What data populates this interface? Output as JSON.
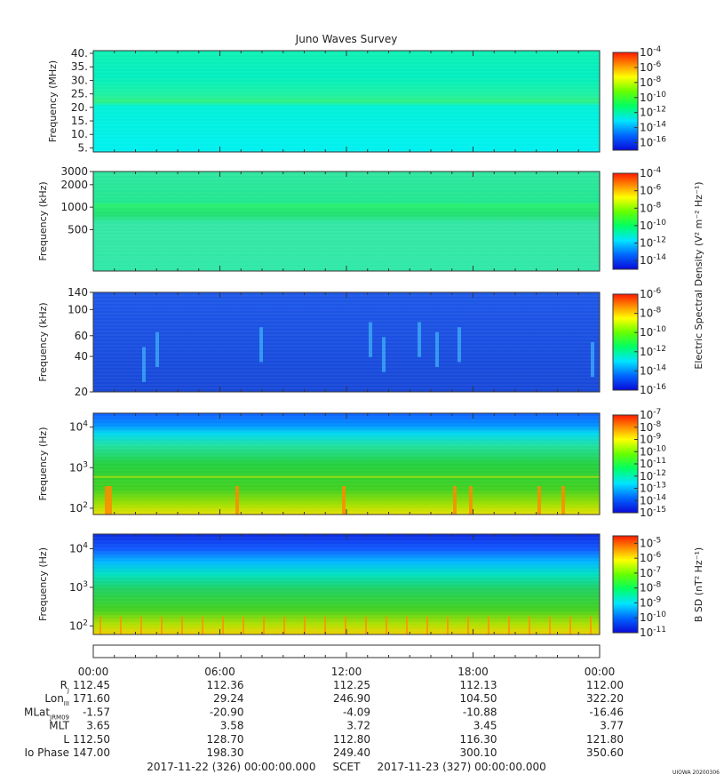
{
  "title": "Juno Waves Survey",
  "stamp": "UIOWA 20200306",
  "footer": {
    "start": "2017-11-22 (326) 00:00:00.000",
    "label": "SCET",
    "end": "2017-11-23 (327) 00:00:00.000"
  },
  "time_ticks": [
    "00:00",
    "06:00",
    "12:00",
    "18:00",
    "00:00"
  ],
  "ephemeris": [
    {
      "label": "R",
      "sub": "J",
      "values": [
        "112.45",
        "112.36",
        "112.25",
        "112.13",
        "112.00"
      ]
    },
    {
      "label": "Lon",
      "sub": "III",
      "values": [
        "171.60",
        "29.24",
        "246.90",
        "104.50",
        "322.20"
      ]
    },
    {
      "label": "MLat",
      "sub": "JRM09",
      "values": [
        "-1.57",
        "-20.90",
        "-4.09",
        "-10.88",
        "-16.46"
      ]
    },
    {
      "label": "MLT",
      "sub": "",
      "values": [
        "3.65",
        "3.58",
        "3.72",
        "3.45",
        "3.77"
      ]
    },
    {
      "label": "L",
      "sub": "",
      "values": [
        "112.50",
        "128.70",
        "112.80",
        "116.30",
        "121.80"
      ]
    },
    {
      "label": "Io Phase",
      "sub": "",
      "values": [
        "147.00",
        "198.30",
        "249.40",
        "300.10",
        "350.60"
      ]
    }
  ],
  "colorbar_titles": {
    "electric": "Electric Spectral Density (V² m⁻² Hz⁻¹)",
    "magnetic": "B SD (nT² Hz⁻¹)"
  },
  "chart_data": [
    {
      "type": "heatmap",
      "ylabel": "Frequency (MHz)",
      "yscale": "linear",
      "ylim": [
        3.5,
        41
      ],
      "yticks": [
        "5.",
        "10.",
        "15.",
        "20.",
        "25.",
        "30.",
        "35.",
        "40."
      ],
      "ytick_values": [
        5,
        10,
        15,
        20,
        25,
        30,
        35,
        40
      ],
      "colorbar": {
        "scale": "log",
        "range_exp": [
          -17,
          -4
        ],
        "tick_exponents": [
          -4,
          -6,
          -8,
          -10,
          -12,
          -14,
          -16
        ]
      },
      "features": "uniform background with emission band near 21 MHz",
      "base_color": "#00e9c8"
    },
    {
      "type": "heatmap",
      "ylabel": "Frequency (kHz)",
      "yscale": "log",
      "ylim": [
        140,
        3000
      ],
      "yticks": [
        "3000",
        "2000",
        "1000",
        "500"
      ],
      "ytick_values": [
        3000,
        2000,
        1000,
        500
      ],
      "colorbar": {
        "scale": "log",
        "range_exp": [
          -15,
          -4
        ],
        "tick_exponents": [
          -4,
          -6,
          -8,
          -10,
          -12,
          -14
        ]
      },
      "features": "emission band near 1000 kHz",
      "base_color": "#2ee6a8"
    },
    {
      "type": "heatmap",
      "ylabel": "Frequency (kHz)",
      "yscale": "log",
      "ylim": [
        20,
        140
      ],
      "yticks": [
        "140",
        "100",
        "60",
        "40",
        "20"
      ],
      "ytick_values": [
        140,
        100,
        60,
        40,
        20
      ],
      "colorbar": {
        "scale": "log",
        "range_exp": [
          -16,
          -6
        ],
        "tick_exponents": [
          -6,
          -8,
          -10,
          -12,
          -14,
          -16
        ]
      },
      "features": "weak drifting bursts",
      "base_color": "#1a4fe0"
    },
    {
      "type": "heatmap",
      "ylabel": "Frequency (Hz)",
      "yscale": "log",
      "ylim": [
        70,
        22000
      ],
      "yticks": [
        "10^4",
        "10^3",
        "10^2"
      ],
      "ytick_values": [
        10000,
        1000,
        100
      ],
      "colorbar": {
        "scale": "log",
        "range_exp": [
          -15,
          -7
        ],
        "tick_exponents": [
          -7,
          -8,
          -9,
          -10,
          -11,
          -12,
          -13,
          -14,
          -15
        ]
      },
      "features": "broadband low-frequency emission",
      "base_color": "#22d030"
    },
    {
      "type": "heatmap",
      "ylabel": "Frequency (Hz)",
      "yscale": "log",
      "ylim": [
        60,
        24000
      ],
      "yticks": [
        "10^4",
        "10^3",
        "10^2"
      ],
      "ytick_values": [
        10000,
        1000,
        100
      ],
      "colorbar": {
        "scale": "log",
        "range_exp": [
          -11,
          -4.5
        ],
        "tick_exponents": [
          -5,
          -6,
          -7,
          -8,
          -9,
          -10,
          -11
        ]
      },
      "features": "magnetic spectral density increasing toward low frequency",
      "base_color": "#2fd040"
    }
  ]
}
